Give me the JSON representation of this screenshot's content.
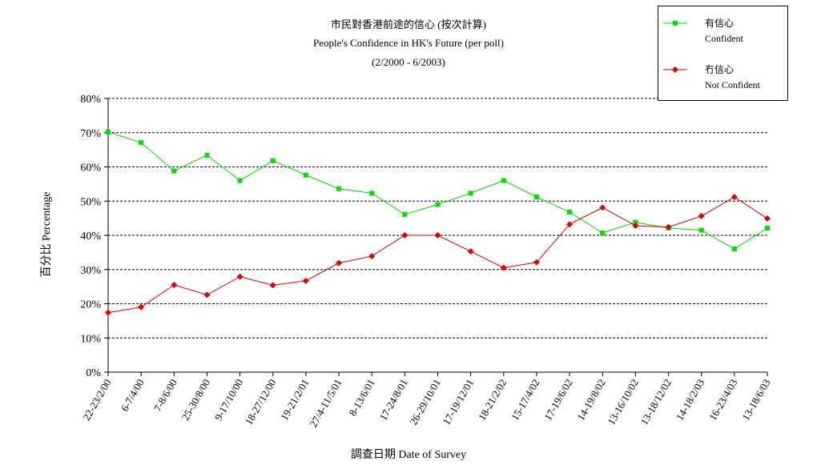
{
  "chart_data": {
    "type": "line",
    "title": "市民對香港前途的信心 (按次計算)",
    "subtitle": "People's Confidence in HK's Future (per poll)",
    "period": "(2/2000 - 6/2003)",
    "xlabel": "調查日期 Date of Survey",
    "ylabel": "百分比 Percentage",
    "ylim": [
      0,
      80
    ],
    "yticks": [
      "0%",
      "10%",
      "20%",
      "30%",
      "40%",
      "50%",
      "60%",
      "70%",
      "80%"
    ],
    "grid": true,
    "legend_position": "top-right",
    "categories": [
      "22-23/2/00",
      "6-7/4/00",
      "7-8/6/00",
      "25-30/8/00",
      "9-17/10/00",
      "18-27/12/00",
      "19-21/2/01",
      "27/4-11/5/01",
      "8-13/6/01",
      "17-24/8/01",
      "26-29/10/01",
      "17-19/12/01",
      "18-21/2/02",
      "15-17/4/02",
      "17-19/6/02",
      "14-19/8/02",
      "13-16/10/02",
      "13-18/12/02",
      "14-18/2/03",
      "16-23/4/03",
      "13-18/6/03"
    ],
    "series": [
      {
        "name": "有信心",
        "name_en": "Confident",
        "color": "#00dd00",
        "marker": "square",
        "values": [
          70.2,
          67.1,
          58.8,
          63.4,
          56.0,
          61.8,
          57.6,
          53.6,
          52.3,
          46.1,
          49.0,
          52.3,
          56.0,
          51.2,
          46.8,
          40.7,
          43.8,
          42.1,
          41.5,
          36.0,
          42.1
        ]
      },
      {
        "name": "冇信心",
        "name_en": "Not Confident",
        "color": "#dd0000",
        "marker": "diamond",
        "values": [
          17.4,
          19.0,
          25.5,
          22.6,
          27.9,
          25.4,
          26.7,
          31.9,
          33.9,
          40.0,
          40.0,
          35.3,
          30.5,
          32.1,
          43.2,
          48.1,
          42.8,
          42.4,
          45.6,
          51.2,
          44.9
        ]
      }
    ]
  }
}
